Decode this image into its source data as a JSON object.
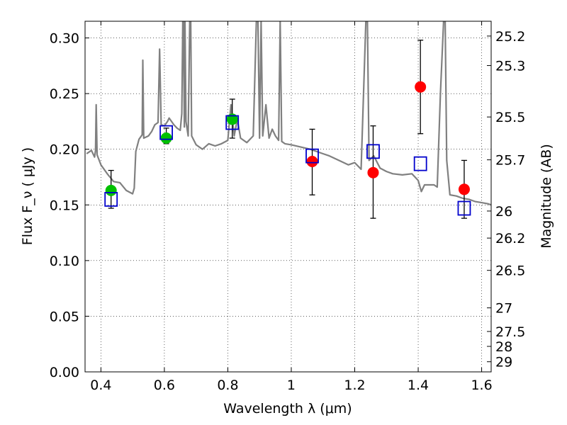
{
  "chart_data": {
    "type": "scatter",
    "xlabel": "Wavelength  λ (μm)",
    "ylabel": "Flux  F_ν  ( μJy )",
    "y2label": "Magnitude (AB)",
    "xlim": [
      0.35,
      1.63
    ],
    "ylim": [
      0.0,
      0.315
    ],
    "grid": true,
    "x_ticks": [
      {
        "value": 0.4,
        "label": "0.4"
      },
      {
        "value": 0.6,
        "label": "0.6"
      },
      {
        "value": 0.8,
        "label": "0.8"
      },
      {
        "value": 1.0,
        "label": "1"
      },
      {
        "value": 1.2,
        "label": "1.2"
      },
      {
        "value": 1.4,
        "label": "1.4"
      },
      {
        "value": 1.6,
        "label": "1.6"
      }
    ],
    "y_ticks": [
      {
        "value": 0.0,
        "label": "0.00"
      },
      {
        "value": 0.05,
        "label": "0.05"
      },
      {
        "value": 0.1,
        "label": "0.10"
      },
      {
        "value": 0.15,
        "label": "0.15"
      },
      {
        "value": 0.2,
        "label": "0.20"
      },
      {
        "value": 0.25,
        "label": "0.25"
      },
      {
        "value": 0.3,
        "label": "0.30"
      }
    ],
    "mag_ticks": [
      {
        "flux": 0.3017,
        "label": "25.2"
      },
      {
        "flux": 0.2752,
        "label": "25.3"
      },
      {
        "flux": 0.229,
        "label": "25.5"
      },
      {
        "flux": 0.1905,
        "label": "25.7"
      },
      {
        "flux": 0.1445,
        "label": "26"
      },
      {
        "flux": 0.1202,
        "label": "26.2"
      },
      {
        "flux": 0.0912,
        "label": "26.5"
      },
      {
        "flux": 0.0575,
        "label": "27"
      },
      {
        "flux": 0.0363,
        "label": "27.5"
      },
      {
        "flux": 0.0229,
        "label": "28"
      },
      {
        "flux": 0.0091,
        "label": "29"
      }
    ],
    "model_spectrum": {
      "color": "#808080",
      "points": [
        [
          0.355,
          0.196
        ],
        [
          0.37,
          0.199
        ],
        [
          0.38,
          0.193
        ],
        [
          0.383,
          0.199
        ],
        [
          0.385,
          0.24
        ],
        [
          0.388,
          0.195
        ],
        [
          0.4,
          0.186
        ],
        [
          0.42,
          0.178
        ],
        [
          0.44,
          0.171
        ],
        [
          0.46,
          0.17
        ],
        [
          0.48,
          0.163
        ],
        [
          0.5,
          0.16
        ],
        [
          0.505,
          0.165
        ],
        [
          0.51,
          0.198
        ],
        [
          0.52,
          0.209
        ],
        [
          0.53,
          0.213
        ],
        [
          0.532,
          0.28
        ],
        [
          0.535,
          0.21
        ],
        [
          0.55,
          0.212
        ],
        [
          0.56,
          0.216
        ],
        [
          0.57,
          0.222
        ],
        [
          0.58,
          0.224
        ],
        [
          0.585,
          0.29
        ],
        [
          0.59,
          0.222
        ],
        [
          0.6,
          0.221
        ],
        [
          0.61,
          0.225
        ],
        [
          0.615,
          0.228
        ],
        [
          0.62,
          0.226
        ],
        [
          0.63,
          0.222
        ],
        [
          0.64,
          0.219
        ],
        [
          0.65,
          0.217
        ],
        [
          0.655,
          0.232
        ],
        [
          0.658,
          0.315
        ],
        [
          0.66,
          0.315
        ],
        [
          0.663,
          0.22
        ],
        [
          0.665,
          0.315
        ],
        [
          0.668,
          0.225
        ],
        [
          0.675,
          0.212
        ],
        [
          0.68,
          0.315
        ],
        [
          0.683,
          0.315
        ],
        [
          0.686,
          0.212
        ],
        [
          0.7,
          0.204
        ],
        [
          0.72,
          0.2
        ],
        [
          0.74,
          0.205
        ],
        [
          0.76,
          0.203
        ],
        [
          0.78,
          0.205
        ],
        [
          0.8,
          0.208
        ],
        [
          0.81,
          0.24
        ],
        [
          0.82,
          0.212
        ],
        [
          0.83,
          0.227
        ],
        [
          0.84,
          0.21
        ],
        [
          0.86,
          0.206
        ],
        [
          0.88,
          0.212
        ],
        [
          0.89,
          0.315
        ],
        [
          0.895,
          0.315
        ],
        [
          0.9,
          0.21
        ],
        [
          0.905,
          0.315
        ],
        [
          0.91,
          0.212
        ],
        [
          0.92,
          0.24
        ],
        [
          0.93,
          0.21
        ],
        [
          0.94,
          0.218
        ],
        [
          0.95,
          0.212
        ],
        [
          0.96,
          0.208
        ],
        [
          0.965,
          0.315
        ],
        [
          0.97,
          0.207
        ],
        [
          0.98,
          0.205
        ],
        [
          1.0,
          0.204
        ],
        [
          1.03,
          0.202
        ],
        [
          1.06,
          0.2
        ],
        [
          1.08,
          0.198
        ],
        [
          1.1,
          0.196
        ],
        [
          1.12,
          0.194
        ],
        [
          1.15,
          0.19
        ],
        [
          1.18,
          0.186
        ],
        [
          1.2,
          0.188
        ],
        [
          1.22,
          0.182
        ],
        [
          1.235,
          0.315
        ],
        [
          1.24,
          0.315
        ],
        [
          1.245,
          0.19
        ],
        [
          1.26,
          0.194
        ],
        [
          1.28,
          0.183
        ],
        [
          1.3,
          0.18
        ],
        [
          1.32,
          0.178
        ],
        [
          1.35,
          0.177
        ],
        [
          1.38,
          0.178
        ],
        [
          1.4,
          0.172
        ],
        [
          1.41,
          0.162
        ],
        [
          1.42,
          0.168
        ],
        [
          1.45,
          0.168
        ],
        [
          1.46,
          0.166
        ],
        [
          1.47,
          0.25
        ],
        [
          1.48,
          0.315
        ],
        [
          1.485,
          0.315
        ],
        [
          1.49,
          0.19
        ],
        [
          1.5,
          0.159
        ],
        [
          1.52,
          0.158
        ],
        [
          1.54,
          0.156
        ],
        [
          1.56,
          0.155
        ],
        [
          1.58,
          0.153
        ],
        [
          1.6,
          0.152
        ],
        [
          1.62,
          0.151
        ],
        [
          1.63,
          0.15
        ]
      ]
    },
    "series": [
      {
        "marker": "circle-filled",
        "color": "#00c000",
        "points": [
          {
            "x": 0.432,
            "y": 0.163,
            "err": [
              0.147,
              0.181
            ]
          },
          {
            "x": 0.606,
            "y": 0.21,
            "err": [
              0.205,
              0.219
            ]
          },
          {
            "x": 0.814,
            "y": 0.227,
            "err": [
              0.21,
              0.245
            ]
          }
        ]
      },
      {
        "marker": "circle-filled",
        "color": "#ff0000",
        "points": [
          {
            "x": 1.066,
            "y": 0.189,
            "err": [
              0.159,
              0.218
            ]
          },
          {
            "x": 1.258,
            "y": 0.179,
            "err": [
              0.138,
              0.221
            ]
          },
          {
            "x": 1.407,
            "y": 0.256,
            "err": [
              0.214,
              0.298
            ]
          },
          {
            "x": 1.545,
            "y": 0.164,
            "err": [
              0.138,
              0.19
            ]
          }
        ]
      },
      {
        "marker": "square-open",
        "color": "#0000cc",
        "points": [
          {
            "x": 0.432,
            "y": 0.155
          },
          {
            "x": 0.606,
            "y": 0.215
          },
          {
            "x": 0.814,
            "y": 0.224
          },
          {
            "x": 1.066,
            "y": 0.194
          },
          {
            "x": 1.258,
            "y": 0.198
          },
          {
            "x": 1.407,
            "y": 0.187
          },
          {
            "x": 1.545,
            "y": 0.147
          }
        ]
      }
    ]
  }
}
